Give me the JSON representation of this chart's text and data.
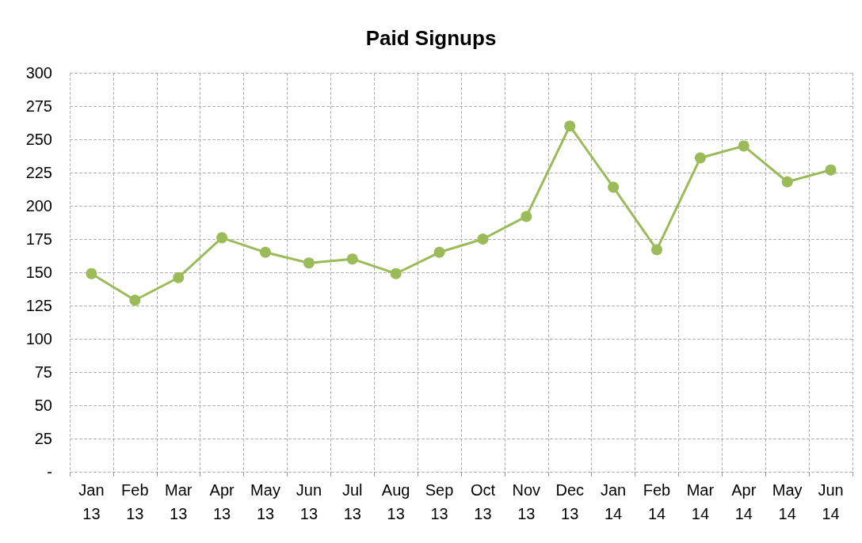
{
  "chart_data": {
    "type": "line",
    "title": "Paid Signups",
    "categories": [
      "Jan 13",
      "Feb 13",
      "Mar 13",
      "Apr 13",
      "May 13",
      "Jun 13",
      "Jul 13",
      "Aug 13",
      "Sep 13",
      "Oct 13",
      "Nov 13",
      "Dec 13",
      "Jan 14",
      "Feb 14",
      "Mar 14",
      "Apr 14",
      "May 14",
      "Jun 14"
    ],
    "series": [
      {
        "color": "#9bbb59",
        "values": [
          149,
          129,
          146,
          176,
          165,
          157,
          160,
          149,
          165,
          175,
          192,
          260,
          214,
          167,
          236,
          245,
          218,
          227
        ]
      }
    ],
    "ylim": [
      0,
      300
    ],
    "yticks": [
      {
        "value": 0,
        "label": "-"
      },
      25,
      50,
      75,
      100,
      125,
      150,
      175,
      200,
      225,
      250,
      275,
      300
    ],
    "grid": true,
    "marker": "circle",
    "line_style": "solid"
  }
}
